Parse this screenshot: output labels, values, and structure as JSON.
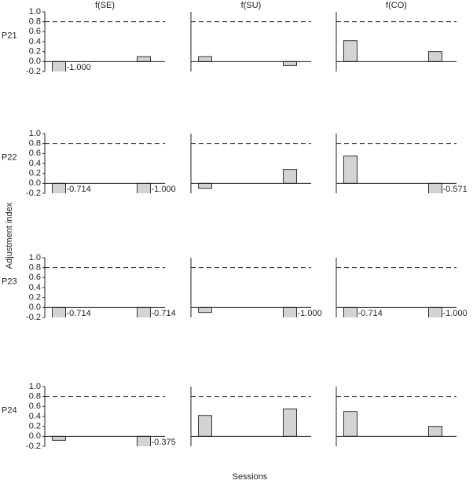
{
  "figure": {
    "ylabel": "Adjustment index",
    "xlabel": "Sessions",
    "columns": [
      "f(SE)",
      "f(SU)",
      "f(CO)"
    ],
    "rows": [
      "P21",
      "P22",
      "P23",
      "P24"
    ]
  },
  "chart_data": [
    {
      "type": "bar",
      "x": [
        1,
        4
      ],
      "values": [
        -1.0,
        0.1
      ],
      "value_labels": [
        "-1.000",
        null
      ],
      "color": "#d3d3d3",
      "xlim": [
        0.5,
        4.75
      ],
      "ylim": [
        -0.2,
        1.0
      ],
      "yticks": [
        -0.2,
        {
          "value": 0,
          "label": "0.0"
        },
        0.2,
        0.4,
        0.6,
        0.8,
        {
          "value": 1,
          "label": "1.0"
        }
      ],
      "refline": 0.8
    },
    {
      "type": "bar",
      "x": [
        1,
        4
      ],
      "values": [
        0.1,
        -0.08
      ],
      "color": "#d3d3d3",
      "xlim": [
        0.5,
        4.75
      ],
      "ylim": [
        -0.2,
        1.0
      ],
      "refline": 0.8
    },
    {
      "type": "bar",
      "x": [
        1,
        4
      ],
      "values": [
        0.42,
        0.2
      ],
      "color": "#d3d3d3",
      "xlim": [
        0.5,
        4.75
      ],
      "ylim": [
        -0.2,
        1.0
      ],
      "refline": 0.8
    },
    {
      "type": "bar",
      "x": [
        1,
        4
      ],
      "values": [
        -0.714,
        -1.0
      ],
      "value_labels": [
        "-0.714",
        "-1.000"
      ],
      "color": "#d3d3d3",
      "xlim": [
        0.5,
        4.75
      ],
      "ylim": [
        -0.2,
        1.0
      ],
      "yticks": [
        -0.2,
        {
          "value": 0,
          "label": "0.0"
        },
        0.2,
        0.4,
        0.6,
        0.8,
        {
          "value": 1,
          "label": "1.0"
        }
      ],
      "refline": 0.8
    },
    {
      "type": "bar",
      "x": [
        1,
        4
      ],
      "values": [
        -0.1,
        0.28
      ],
      "color": "#d3d3d3",
      "xlim": [
        0.5,
        4.75
      ],
      "ylim": [
        -0.2,
        1.0
      ],
      "refline": 0.8
    },
    {
      "type": "bar",
      "x": [
        1,
        4
      ],
      "values": [
        0.55,
        -0.571
      ],
      "value_labels": [
        null,
        "-0.571"
      ],
      "color": "#d3d3d3",
      "xlim": [
        0.5,
        4.75
      ],
      "ylim": [
        -0.2,
        1.0
      ],
      "refline": 0.8
    },
    {
      "type": "bar",
      "x": [
        1,
        4
      ],
      "values": [
        -0.714,
        -0.714
      ],
      "value_labels": [
        "-0.714",
        "-0.714"
      ],
      "color": "#d3d3d3",
      "xlim": [
        0.5,
        4.75
      ],
      "ylim": [
        -0.2,
        1.0
      ],
      "yticks": [
        -0.2,
        {
          "value": 0,
          "label": "0.0"
        },
        0.2,
        0.4,
        0.6,
        0.8,
        {
          "value": 1,
          "label": "1.0"
        }
      ],
      "refline": 0.8
    },
    {
      "type": "bar",
      "x": [
        1,
        4
      ],
      "values": [
        -0.1,
        -1.0
      ],
      "value_labels": [
        null,
        "-1.000"
      ],
      "color": "#d3d3d3",
      "xlim": [
        0.5,
        4.75
      ],
      "ylim": [
        -0.2,
        1.0
      ],
      "refline": 0.8
    },
    {
      "type": "bar",
      "x": [
        1,
        4
      ],
      "values": [
        -0.714,
        -1.0
      ],
      "value_labels": [
        "-0.714",
        "-1.000"
      ],
      "color": "#d3d3d3",
      "xlim": [
        0.5,
        4.75
      ],
      "ylim": [
        -0.2,
        1.0
      ],
      "refline": 0.8
    },
    {
      "type": "bar",
      "x": [
        1,
        4
      ],
      "values": [
        -0.08,
        -0.375
      ],
      "value_labels": [
        null,
        "-0.375"
      ],
      "color": "#d3d3d3",
      "xlim": [
        0.5,
        4.75
      ],
      "ylim": [
        -0.2,
        1.0
      ],
      "yticks": [
        -0.2,
        {
          "value": 0,
          "label": "0.0"
        },
        0.2,
        0.4,
        0.6,
        0.8,
        {
          "value": 1,
          "label": "1.0"
        }
      ],
      "refline": 0.8
    },
    {
      "type": "bar",
      "x": [
        1,
        4
      ],
      "values": [
        0.42,
        0.55
      ],
      "color": "#d3d3d3",
      "xlim": [
        0.5,
        4.75
      ],
      "ylim": [
        -0.2,
        1.0
      ],
      "refline": 0.8
    },
    {
      "type": "bar",
      "x": [
        1,
        4
      ],
      "values": [
        0.5,
        0.2
      ],
      "color": "#d3d3d3",
      "xlim": [
        0.5,
        4.75
      ],
      "ylim": [
        -0.2,
        1.0
      ],
      "refline": 0.8
    }
  ]
}
